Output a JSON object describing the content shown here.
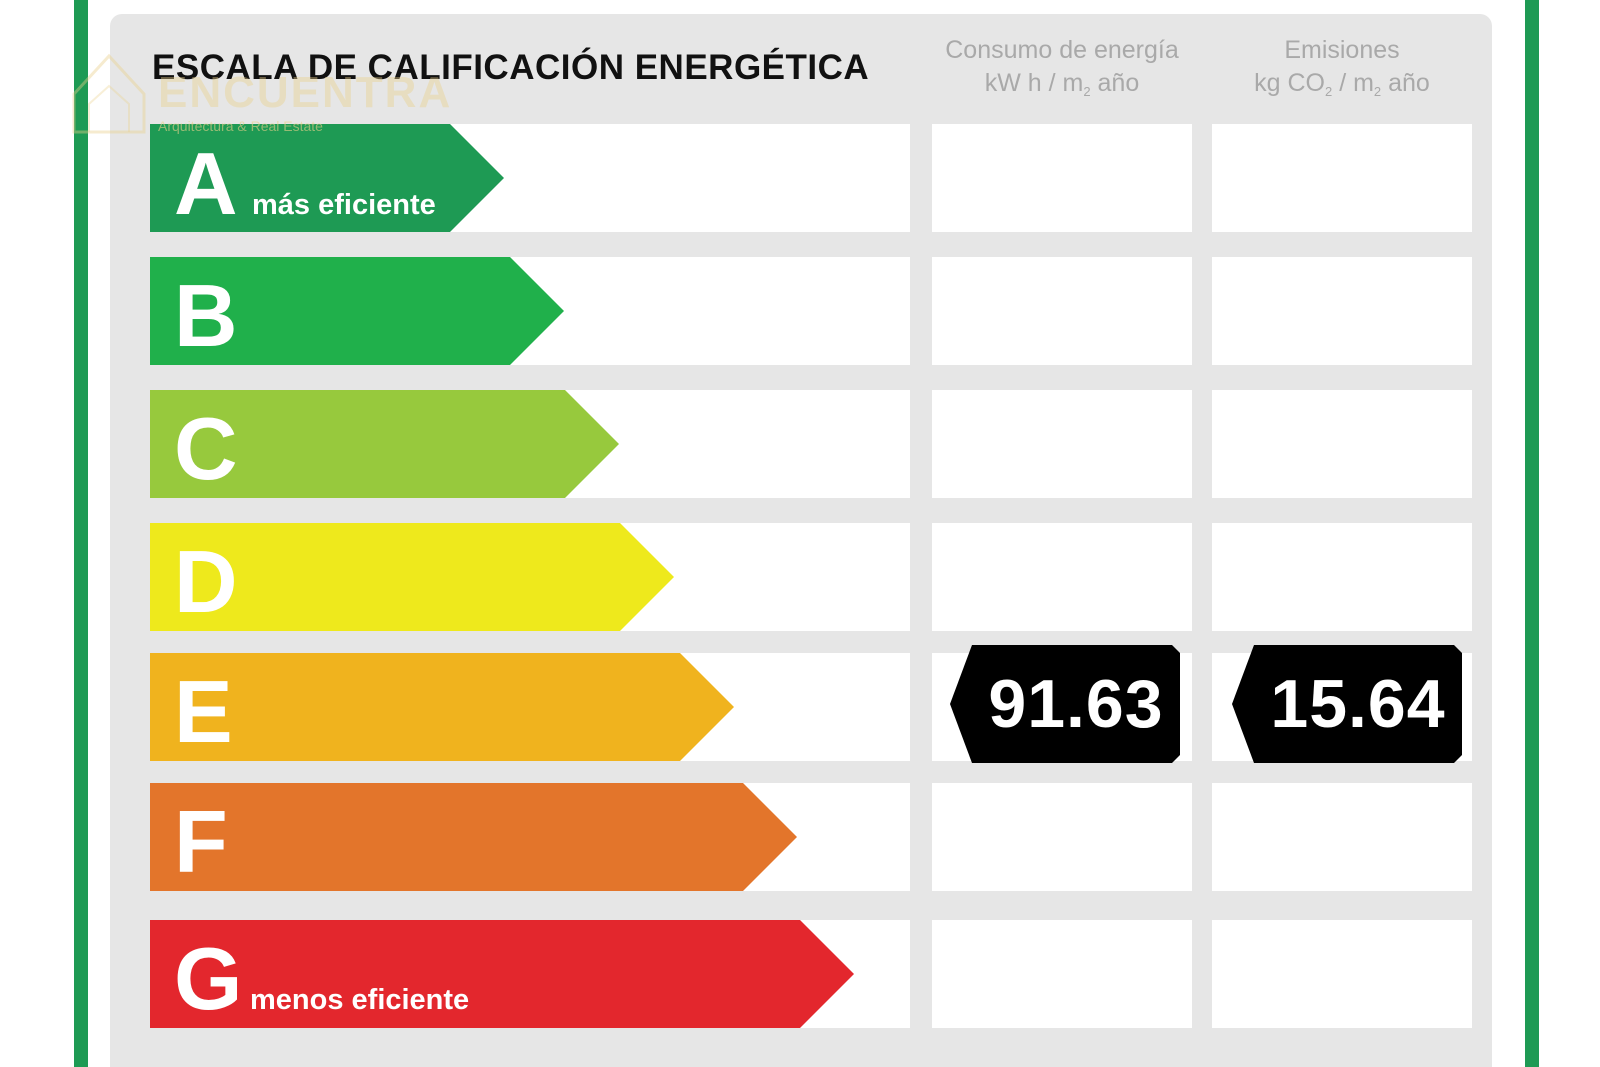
{
  "header": {
    "title": "ESCALA DE CALIFICACIÓN ENERGÉTICA",
    "energy_column": {
      "line1": "Consumo de energía",
      "line2_a": "kW h / m",
      "line2_sub": "2",
      "line2_b": " año"
    },
    "emissions_column": {
      "line1": "Emisiones",
      "line2_a": "kg CO",
      "line2_sub1": "2",
      "line2_b": " / m",
      "line2_sub2": "2",
      "line2_c": " año"
    }
  },
  "logo": {
    "name": "ENCUENTRA",
    "tagline": "Arquitectura & Real Estate",
    "color": "#e9d08a"
  },
  "frame_color": "#1e9a54",
  "ratings": [
    {
      "letter": "A",
      "sublabel": "más eficiente",
      "color": "#1e9a54"
    },
    {
      "letter": "B",
      "sublabel": "",
      "color": "#20b04b"
    },
    {
      "letter": "C",
      "sublabel": "",
      "color": "#97c93d"
    },
    {
      "letter": "D",
      "sublabel": "",
      "color": "#eee91c"
    },
    {
      "letter": "E",
      "sublabel": "",
      "color": "#f0b31e"
    },
    {
      "letter": "F",
      "sublabel": "",
      "color": "#e3752b"
    },
    {
      "letter": "G",
      "sublabel": "menos eficiente",
      "color": "#e3272d"
    }
  ],
  "current_rating": "E",
  "values": {
    "energy_consumption": "91.63",
    "emissions": "15.64"
  }
}
